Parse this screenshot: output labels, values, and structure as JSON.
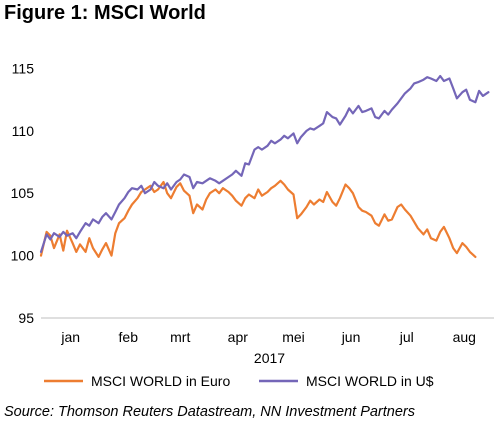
{
  "figure_title": "Figure 1: MSCI World",
  "source": "Source: Thomson Reuters Datastream, NN Investment Partners",
  "colors": {
    "euro": "#ED7D31",
    "usd": "#7466B8",
    "axis": "#BFBFBF",
    "text": "#000000"
  },
  "chart_data": {
    "type": "line",
    "title": "",
    "xlabel": "2017",
    "ylabel": "",
    "ylim": [
      95,
      116
    ],
    "yticks": [
      95,
      100,
      105,
      110,
      115
    ],
    "grid": false,
    "legend_position": "bottom",
    "x_ticklabels": [
      "jan",
      "feb",
      "mrt",
      "apr",
      "mei",
      "jun",
      "jul",
      "aug"
    ],
    "x_tick_positions": [
      "2017-01-15",
      "2017-02-15",
      "2017-03-15",
      "2017-04-15",
      "2017-05-15",
      "2017-06-15",
      "2017-07-15",
      "2017-08-15"
    ],
    "x_range": [
      "2016-12-30",
      "2017-08-31"
    ],
    "series": [
      {
        "name": "MSCI WORLD in Euro",
        "color": "#ED7D31",
        "points": [
          [
            "2016-12-30",
            100.0
          ],
          [
            "2017-01-02",
            101.9
          ],
          [
            "2017-01-04",
            101.6
          ],
          [
            "2017-01-06",
            100.6
          ],
          [
            "2017-01-09",
            101.7
          ],
          [
            "2017-01-11",
            100.4
          ],
          [
            "2017-01-13",
            102.0
          ],
          [
            "2017-01-16",
            101.0
          ],
          [
            "2017-01-18",
            100.3
          ],
          [
            "2017-01-20",
            100.9
          ],
          [
            "2017-01-23",
            100.3
          ],
          [
            "2017-01-25",
            101.4
          ],
          [
            "2017-01-27",
            100.6
          ],
          [
            "2017-01-30",
            99.9
          ],
          [
            "2017-02-01",
            100.5
          ],
          [
            "2017-02-03",
            101.0
          ],
          [
            "2017-02-06",
            100.0
          ],
          [
            "2017-02-08",
            101.8
          ],
          [
            "2017-02-10",
            102.6
          ],
          [
            "2017-02-13",
            103.0
          ],
          [
            "2017-02-15",
            103.6
          ],
          [
            "2017-02-17",
            104.1
          ],
          [
            "2017-02-20",
            104.6
          ],
          [
            "2017-02-22",
            105.1
          ],
          [
            "2017-02-24",
            105.3
          ],
          [
            "2017-02-27",
            105.6
          ],
          [
            "2017-03-01",
            105.1
          ],
          [
            "2017-03-03",
            105.3
          ],
          [
            "2017-03-06",
            105.9
          ],
          [
            "2017-03-08",
            105.0
          ],
          [
            "2017-03-10",
            104.6
          ],
          [
            "2017-03-13",
            105.5
          ],
          [
            "2017-03-15",
            105.8
          ],
          [
            "2017-03-17",
            105.2
          ],
          [
            "2017-03-20",
            104.8
          ],
          [
            "2017-03-22",
            103.4
          ],
          [
            "2017-03-24",
            104.1
          ],
          [
            "2017-03-27",
            103.7
          ],
          [
            "2017-03-29",
            104.5
          ],
          [
            "2017-03-31",
            105.0
          ],
          [
            "2017-04-03",
            105.3
          ],
          [
            "2017-04-05",
            105.0
          ],
          [
            "2017-04-07",
            105.4
          ],
          [
            "2017-04-10",
            105.1
          ],
          [
            "2017-04-12",
            104.8
          ],
          [
            "2017-04-14",
            104.4
          ],
          [
            "2017-04-17",
            104.0
          ],
          [
            "2017-04-19",
            104.6
          ],
          [
            "2017-04-21",
            104.9
          ],
          [
            "2017-04-24",
            104.6
          ],
          [
            "2017-04-26",
            105.3
          ],
          [
            "2017-04-28",
            104.8
          ],
          [
            "2017-05-01",
            105.1
          ],
          [
            "2017-05-03",
            105.4
          ],
          [
            "2017-05-05",
            105.6
          ],
          [
            "2017-05-08",
            106.0
          ],
          [
            "2017-05-10",
            105.7
          ],
          [
            "2017-05-12",
            105.3
          ],
          [
            "2017-05-15",
            104.9
          ],
          [
            "2017-05-17",
            103.0
          ],
          [
            "2017-05-19",
            103.3
          ],
          [
            "2017-05-22",
            103.9
          ],
          [
            "2017-05-24",
            104.4
          ],
          [
            "2017-05-26",
            104.1
          ],
          [
            "2017-05-29",
            104.5
          ],
          [
            "2017-05-31",
            104.3
          ],
          [
            "2017-06-02",
            105.1
          ],
          [
            "2017-06-05",
            104.3
          ],
          [
            "2017-06-07",
            104.0
          ],
          [
            "2017-06-09",
            104.6
          ],
          [
            "2017-06-12",
            105.7
          ],
          [
            "2017-06-14",
            105.4
          ],
          [
            "2017-06-16",
            105.0
          ],
          [
            "2017-06-19",
            103.9
          ],
          [
            "2017-06-21",
            103.6
          ],
          [
            "2017-06-23",
            103.5
          ],
          [
            "2017-06-26",
            103.2
          ],
          [
            "2017-06-28",
            102.6
          ],
          [
            "2017-06-30",
            102.4
          ],
          [
            "2017-07-03",
            103.3
          ],
          [
            "2017-07-05",
            102.8
          ],
          [
            "2017-07-07",
            102.9
          ],
          [
            "2017-07-10",
            103.9
          ],
          [
            "2017-07-12",
            104.1
          ],
          [
            "2017-07-14",
            103.7
          ],
          [
            "2017-07-17",
            103.2
          ],
          [
            "2017-07-19",
            102.7
          ],
          [
            "2017-07-21",
            102.2
          ],
          [
            "2017-07-24",
            101.7
          ],
          [
            "2017-07-26",
            102.1
          ],
          [
            "2017-07-28",
            101.4
          ],
          [
            "2017-07-31",
            101.2
          ],
          [
            "2017-08-02",
            101.9
          ],
          [
            "2017-08-04",
            102.3
          ],
          [
            "2017-08-07",
            101.4
          ],
          [
            "2017-08-09",
            100.6
          ],
          [
            "2017-08-11",
            100.2
          ],
          [
            "2017-08-14",
            101.0
          ],
          [
            "2017-08-16",
            100.7
          ],
          [
            "2017-08-18",
            100.3
          ],
          [
            "2017-08-21",
            99.9
          ]
        ]
      },
      {
        "name": "MSCI WORLD in U$",
        "color": "#7466B8",
        "points": [
          [
            "2016-12-30",
            100.3
          ],
          [
            "2017-01-02",
            101.7
          ],
          [
            "2017-01-04",
            101.3
          ],
          [
            "2017-01-06",
            101.8
          ],
          [
            "2017-01-09",
            101.5
          ],
          [
            "2017-01-11",
            101.9
          ],
          [
            "2017-01-13",
            101.6
          ],
          [
            "2017-01-16",
            101.8
          ],
          [
            "2017-01-18",
            101.4
          ],
          [
            "2017-01-20",
            101.9
          ],
          [
            "2017-01-23",
            102.6
          ],
          [
            "2017-01-25",
            102.4
          ],
          [
            "2017-01-27",
            102.9
          ],
          [
            "2017-01-30",
            102.6
          ],
          [
            "2017-02-01",
            103.1
          ],
          [
            "2017-02-03",
            103.4
          ],
          [
            "2017-02-06",
            102.9
          ],
          [
            "2017-02-08",
            103.5
          ],
          [
            "2017-02-10",
            104.1
          ],
          [
            "2017-02-13",
            104.6
          ],
          [
            "2017-02-15",
            105.1
          ],
          [
            "2017-02-17",
            105.4
          ],
          [
            "2017-02-20",
            105.3
          ],
          [
            "2017-02-22",
            105.6
          ],
          [
            "2017-02-24",
            105.0
          ],
          [
            "2017-02-27",
            105.3
          ],
          [
            "2017-03-01",
            105.9
          ],
          [
            "2017-03-03",
            105.6
          ],
          [
            "2017-03-06",
            105.4
          ],
          [
            "2017-03-08",
            105.8
          ],
          [
            "2017-03-10",
            105.3
          ],
          [
            "2017-03-13",
            105.9
          ],
          [
            "2017-03-15",
            106.1
          ],
          [
            "2017-03-17",
            106.5
          ],
          [
            "2017-03-20",
            106.3
          ],
          [
            "2017-03-22",
            105.4
          ],
          [
            "2017-03-24",
            105.9
          ],
          [
            "2017-03-27",
            105.8
          ],
          [
            "2017-03-29",
            106.0
          ],
          [
            "2017-03-31",
            106.2
          ],
          [
            "2017-04-03",
            106.0
          ],
          [
            "2017-04-05",
            105.8
          ],
          [
            "2017-04-07",
            106.0
          ],
          [
            "2017-04-10",
            106.3
          ],
          [
            "2017-04-12",
            106.5
          ],
          [
            "2017-04-14",
            106.8
          ],
          [
            "2017-04-17",
            106.4
          ],
          [
            "2017-04-19",
            107.4
          ],
          [
            "2017-04-21",
            107.3
          ],
          [
            "2017-04-24",
            108.5
          ],
          [
            "2017-04-26",
            108.7
          ],
          [
            "2017-04-28",
            108.5
          ],
          [
            "2017-05-01",
            108.8
          ],
          [
            "2017-05-03",
            109.2
          ],
          [
            "2017-05-05",
            109.0
          ],
          [
            "2017-05-08",
            109.3
          ],
          [
            "2017-05-10",
            109.6
          ],
          [
            "2017-05-12",
            109.4
          ],
          [
            "2017-05-15",
            109.8
          ],
          [
            "2017-05-17",
            109.0
          ],
          [
            "2017-05-19",
            109.5
          ],
          [
            "2017-05-22",
            110.0
          ],
          [
            "2017-05-24",
            110.2
          ],
          [
            "2017-05-26",
            110.1
          ],
          [
            "2017-05-29",
            110.4
          ],
          [
            "2017-05-31",
            110.6
          ],
          [
            "2017-06-02",
            111.5
          ],
          [
            "2017-06-05",
            111.1
          ],
          [
            "2017-06-07",
            111.0
          ],
          [
            "2017-06-09",
            110.5
          ],
          [
            "2017-06-12",
            111.2
          ],
          [
            "2017-06-14",
            111.8
          ],
          [
            "2017-06-16",
            111.4
          ],
          [
            "2017-06-19",
            112.0
          ],
          [
            "2017-06-21",
            111.5
          ],
          [
            "2017-06-23",
            111.6
          ],
          [
            "2017-06-26",
            111.8
          ],
          [
            "2017-06-28",
            111.1
          ],
          [
            "2017-06-30",
            111.0
          ],
          [
            "2017-07-03",
            111.6
          ],
          [
            "2017-07-05",
            111.3
          ],
          [
            "2017-07-07",
            111.7
          ],
          [
            "2017-07-10",
            112.2
          ],
          [
            "2017-07-12",
            112.6
          ],
          [
            "2017-07-14",
            113.0
          ],
          [
            "2017-07-17",
            113.4
          ],
          [
            "2017-07-19",
            113.8
          ],
          [
            "2017-07-21",
            113.9
          ],
          [
            "2017-07-24",
            114.1
          ],
          [
            "2017-07-26",
            114.3
          ],
          [
            "2017-07-28",
            114.2
          ],
          [
            "2017-07-31",
            114.0
          ],
          [
            "2017-08-02",
            114.4
          ],
          [
            "2017-08-04",
            114.0
          ],
          [
            "2017-08-07",
            114.2
          ],
          [
            "2017-08-09",
            113.4
          ],
          [
            "2017-08-11",
            112.6
          ],
          [
            "2017-08-14",
            113.1
          ],
          [
            "2017-08-16",
            113.3
          ],
          [
            "2017-08-18",
            112.5
          ],
          [
            "2017-08-21",
            112.3
          ],
          [
            "2017-08-23",
            113.2
          ],
          [
            "2017-08-25",
            112.8
          ],
          [
            "2017-08-28",
            113.1
          ]
        ]
      }
    ]
  }
}
